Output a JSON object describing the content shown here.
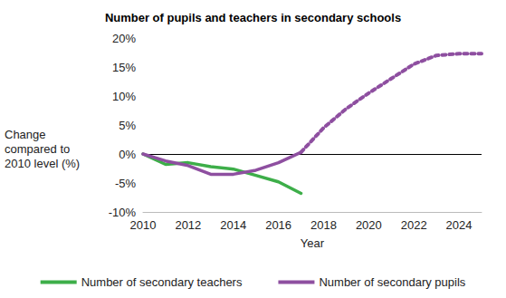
{
  "chart_data": {
    "type": "line",
    "title": "Number of pupils and teachers in secondary schools",
    "x_label": "Year",
    "y_label": "Change compared to 2010 level (%)",
    "x": [
      2010,
      2011,
      2012,
      2013,
      2014,
      2015,
      2016,
      2017,
      2018,
      2019,
      2020,
      2021,
      2022,
      2023,
      2024,
      2025
    ],
    "series": [
      {
        "name": "Number of secondary teachers",
        "color": "#3dae49",
        "line_style": "solid",
        "values": [
          0,
          -1.8,
          -1.5,
          -2.2,
          -2.6,
          -3.7,
          -4.8,
          -6.8,
          null,
          null,
          null,
          null,
          null,
          null,
          null,
          null
        ]
      },
      {
        "name": "Number of secondary pupils",
        "color": "#8e4fa0",
        "line_style": "solid",
        "values": [
          0,
          -1.2,
          -2.0,
          -3.5,
          -3.5,
          -2.8,
          -1.5,
          0.3,
          null,
          null,
          null,
          null,
          null,
          null,
          null,
          null
        ]
      },
      {
        "name": "Number of secondary pupils",
        "color": "#8e4fa0",
        "line_style": "dotted",
        "values": [
          null,
          null,
          null,
          null,
          null,
          null,
          null,
          0.3,
          4.5,
          7.8,
          10.5,
          13.0,
          15.5,
          17.0,
          17.3,
          17.3
        ]
      }
    ],
    "xlim": [
      2010,
      2025
    ],
    "xticks": [
      2010,
      2012,
      2014,
      2016,
      2018,
      2020,
      2022,
      2024
    ],
    "ylim": [
      -10,
      20
    ],
    "yticks": [
      {
        "value": -10,
        "label": "-10%"
      },
      {
        "value": -5,
        "label": "-5%"
      },
      {
        "value": 0,
        "label": "0%"
      },
      {
        "value": 5,
        "label": "5%"
      },
      {
        "value": 10,
        "label": "10%"
      },
      {
        "value": 15,
        "label": "15%"
      },
      {
        "value": 20,
        "label": "20%"
      }
    ],
    "grid": false,
    "legend": "bottom"
  }
}
